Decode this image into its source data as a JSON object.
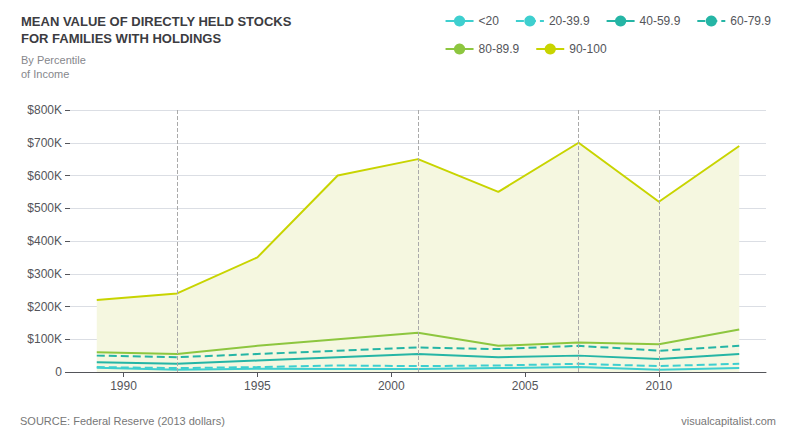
{
  "chart_data": {
    "type": "line",
    "title": "MEAN VALUE OF DIRECTLY HELD STOCKS\nFOR FAMILIES WITH HOLDINGS",
    "subtitle": "By Percentile\nof Income",
    "annotations": [
      "SOURCE: Federal Reserve (2013 dollars)",
      "visualcapitalist.com"
    ],
    "x": [
      1989,
      1992,
      1995,
      1998,
      2001,
      2004,
      2007,
      2010,
      2013
    ],
    "series": [
      {
        "name": "<20",
        "color": "#3ecfcf",
        "line_style": "solid",
        "values": [
          13000,
          7000,
          10000,
          9000,
          9000,
          12000,
          15000,
          7000,
          12000
        ]
      },
      {
        "name": "20-39.9",
        "color": "#3ecfcf",
        "line_style": "dashed",
        "values": [
          15000,
          12000,
          15000,
          20000,
          18000,
          20000,
          25000,
          18000,
          25000
        ]
      },
      {
        "name": "40-59.9",
        "color": "#25b5a5",
        "line_style": "solid",
        "values": [
          30000,
          25000,
          35000,
          45000,
          55000,
          45000,
          50000,
          40000,
          55000
        ]
      },
      {
        "name": "60-79.9",
        "color": "#25b5a5",
        "line_style": "dashed",
        "values": [
          50000,
          45000,
          55000,
          65000,
          75000,
          70000,
          80000,
          65000,
          80000
        ]
      },
      {
        "name": "80-89.9",
        "color": "#8dc63f",
        "line_style": "solid",
        "values": [
          60000,
          55000,
          80000,
          100000,
          120000,
          80000,
          90000,
          85000,
          130000
        ]
      },
      {
        "name": "90-100",
        "color": "#c8d400",
        "line_style": "solid",
        "type": "area",
        "fill_color": "#f5f7e0",
        "values": [
          220000,
          240000,
          350000,
          600000,
          650000,
          550000,
          700000,
          520000,
          690000
        ]
      }
    ],
    "vlines": [
      1992,
      2001,
      2007,
      2010
    ],
    "xlim": [
      1988,
      2014
    ],
    "xticks": [
      1990,
      1995,
      2000,
      2005,
      2010
    ],
    "ylim": [
      0,
      800000
    ],
    "yticks": [
      0,
      {
        "value": 100000,
        "label": "$100K"
      },
      {
        "value": 200000,
        "label": "$200K"
      },
      {
        "value": 300000,
        "label": "$300K"
      },
      {
        "value": 400000,
        "label": "$400K"
      },
      {
        "value": 500000,
        "label": "$500K"
      },
      {
        "value": 600000,
        "label": "$600K"
      },
      {
        "value": 700000,
        "label": "$700K"
      },
      {
        "value": 800000,
        "label": "$800K"
      }
    ],
    "grid": true,
    "legend": "upper right"
  }
}
